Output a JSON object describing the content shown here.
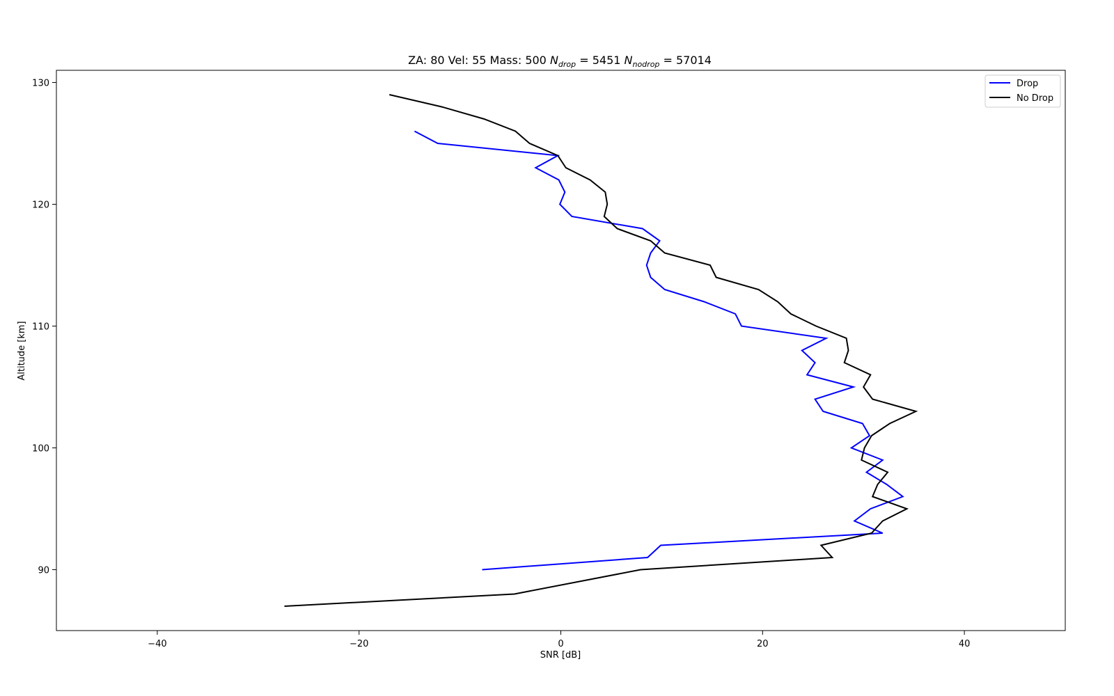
{
  "chart_data": {
    "type": "line",
    "title": {
      "prefix": "ZA: 80 Vel: 55 Mass: 500 ",
      "n_drop_symbol": "N",
      "n_drop_sub": "drop",
      "n_drop_value": " = 5451 ",
      "n_nodrop_symbol": "N",
      "n_nodrop_sub": "nodrop",
      "n_nodrop_value": " = 57014"
    },
    "xlabel": "SNR [dB]",
    "ylabel": "Altitude [km]",
    "xlim": [
      -50,
      50
    ],
    "ylim": [
      85,
      131
    ],
    "xticks": [
      -40,
      -20,
      0,
      20,
      40
    ],
    "xtick_labels": [
      "−40",
      "−20",
      "0",
      "20",
      "40"
    ],
    "yticks": [
      90,
      100,
      110,
      120,
      130
    ],
    "ytick_labels": [
      "90",
      "100",
      "110",
      "120",
      "130"
    ],
    "grid": false,
    "legend_position": "top-right",
    "series": [
      {
        "name": "Drop",
        "color": "#0000ff",
        "points": [
          [
            -14.5,
            126
          ],
          [
            -12.2,
            125
          ],
          [
            -0.3,
            124
          ],
          [
            -2.5,
            123
          ],
          [
            -0.2,
            122
          ],
          [
            0.4,
            121
          ],
          [
            -0.1,
            120
          ],
          [
            1.1,
            119
          ],
          [
            8.1,
            118
          ],
          [
            9.8,
            117
          ],
          [
            8.9,
            116
          ],
          [
            8.5,
            115
          ],
          [
            8.9,
            114
          ],
          [
            10.3,
            113
          ],
          [
            14.2,
            112
          ],
          [
            17.3,
            111
          ],
          [
            17.9,
            110
          ],
          [
            26.3,
            109
          ],
          [
            23.9,
            108
          ],
          [
            25.2,
            107
          ],
          [
            24.4,
            106
          ],
          [
            29.0,
            105
          ],
          [
            25.2,
            104
          ],
          [
            26.0,
            103
          ],
          [
            29.9,
            102
          ],
          [
            30.6,
            101
          ],
          [
            28.8,
            100
          ],
          [
            31.9,
            99
          ],
          [
            30.3,
            98
          ],
          [
            32.3,
            97
          ],
          [
            33.9,
            96
          ],
          [
            30.7,
            95
          ],
          [
            29.1,
            94
          ],
          [
            31.9,
            93
          ],
          [
            9.9,
            92
          ],
          [
            8.6,
            91
          ],
          [
            -7.8,
            90
          ]
        ]
      },
      {
        "name": "No Drop",
        "color": "#000000",
        "points": [
          [
            -17.0,
            129
          ],
          [
            -11.8,
            128
          ],
          [
            -7.6,
            127
          ],
          [
            -4.5,
            126
          ],
          [
            -3.1,
            125
          ],
          [
            -0.3,
            124
          ],
          [
            0.5,
            123
          ],
          [
            2.9,
            122
          ],
          [
            4.4,
            121
          ],
          [
            4.6,
            120
          ],
          [
            4.3,
            119
          ],
          [
            5.6,
            118
          ],
          [
            8.9,
            117
          ],
          [
            10.3,
            116
          ],
          [
            14.8,
            115
          ],
          [
            15.4,
            114
          ],
          [
            19.6,
            113
          ],
          [
            21.5,
            112
          ],
          [
            22.8,
            111
          ],
          [
            25.3,
            110
          ],
          [
            28.3,
            109
          ],
          [
            28.5,
            108
          ],
          [
            28.1,
            107
          ],
          [
            30.7,
            106
          ],
          [
            30.0,
            105
          ],
          [
            30.9,
            104
          ],
          [
            35.2,
            103
          ],
          [
            32.6,
            102
          ],
          [
            30.8,
            101
          ],
          [
            30.1,
            100
          ],
          [
            29.8,
            99
          ],
          [
            32.4,
            98
          ],
          [
            31.4,
            97
          ],
          [
            30.9,
            96
          ],
          [
            34.3,
            95
          ],
          [
            31.9,
            94
          ],
          [
            30.8,
            93
          ],
          [
            25.8,
            92
          ],
          [
            26.9,
            91
          ],
          [
            7.9,
            90
          ],
          [
            -4.6,
            88
          ],
          [
            -27.4,
            87
          ]
        ]
      }
    ]
  }
}
